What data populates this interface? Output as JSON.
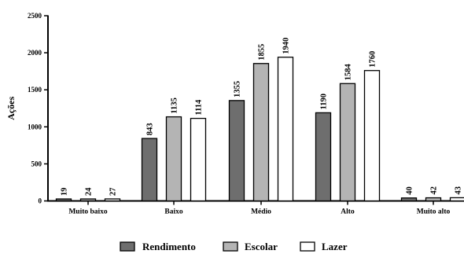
{
  "chart_data": {
    "type": "bar",
    "title": "",
    "xlabel": "",
    "ylabel": "Ações",
    "ylim": [
      0,
      2500
    ],
    "yticks": [
      0,
      500,
      1000,
      1500,
      2000,
      2500
    ],
    "grid": false,
    "legend_position": "bottom",
    "categories": [
      "Muito baixo",
      "Baixo",
      "Médio",
      "Alto",
      "Muito alto"
    ],
    "series": [
      {
        "name": "Rendimento",
        "color": "#6e6e6e",
        "values": [
          19,
          843,
          1355,
          1190,
          40
        ]
      },
      {
        "name": "Escolar",
        "color": "#b4b4b4",
        "values": [
          24,
          1135,
          1855,
          1584,
          42
        ]
      },
      {
        "name": "Lazer",
        "color": "#ffffff",
        "values": [
          27,
          1114,
          1940,
          1760,
          43
        ]
      }
    ]
  }
}
